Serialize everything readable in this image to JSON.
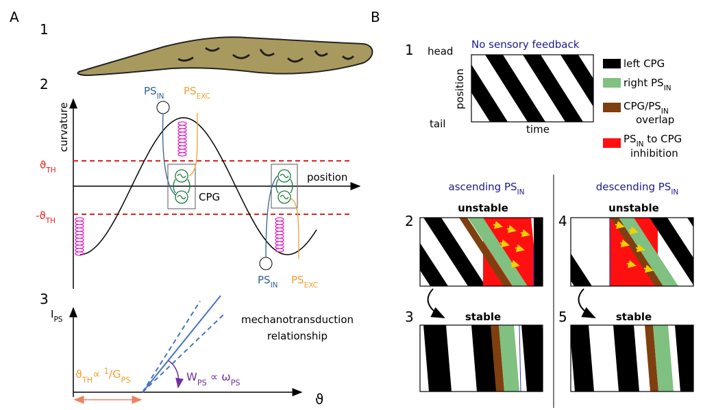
{
  "panel_a": {
    "label": "A",
    "step1": "1",
    "step2": "2",
    "step3": "3",
    "curvature_axis": "curvature",
    "position_axis": "position",
    "cpg_label": "CPG",
    "threshold_upper": [
      {
        "t": "ϑ"
      },
      {
        "sub": "TH"
      }
    ],
    "threshold_lower": [
      {
        "t": "-ϑ"
      },
      {
        "sub": "TH"
      }
    ],
    "ps_in_top": [
      {
        "t": "PS"
      },
      {
        "sub": "IN"
      }
    ],
    "ps_exc_top": [
      {
        "t": "PS"
      },
      {
        "sub": "EXC"
      }
    ],
    "ps_in_bottom": [
      {
        "t": "PS"
      },
      {
        "sub": "IN"
      }
    ],
    "ps_exc_bottom": [
      {
        "t": "PS"
      },
      {
        "sub": "EXC"
      }
    ],
    "current_axis": [
      {
        "t": "I"
      },
      {
        "sub": "PS"
      }
    ],
    "angle_axis": "ϑ",
    "relationship": [
      "mechanotransduction",
      "relationship"
    ],
    "threshold_relation": [
      {
        "t": "ϑ"
      },
      {
        "sub": "TH"
      },
      {
        "t": "∝ "
      },
      {
        "sup": "1"
      },
      {
        "t": "/G"
      },
      {
        "sub": "PS"
      }
    ],
    "gain_relation": [
      {
        "t": "W"
      },
      {
        "sub": "PS"
      },
      {
        "t": " ∝ ω"
      },
      {
        "sub": "PS"
      }
    ]
  },
  "panel_b": {
    "label": "B",
    "step1": "1",
    "head": "head",
    "tail": "tail",
    "position_axis": "position",
    "time_axis": "time",
    "no_feedback": "No sensory feedback",
    "legend": {
      "left_cpg": [
        {
          "t": "left CPG"
        }
      ],
      "right_ps_in": [
        {
          "t": "right PS"
        },
        {
          "sub": "IN"
        }
      ],
      "overlap": [
        {
          "t": "CPG/PS"
        },
        {
          "sub": "IN"
        }
      ],
      "overlap_2": "overlap",
      "inhibition": [
        {
          "t": "PS"
        },
        {
          "sub": "IN"
        },
        {
          "t": " to CPG"
        }
      ],
      "inhibition_2": "inhibition"
    },
    "ascending": [
      {
        "t": "ascending PS"
      },
      {
        "sub": "IN"
      }
    ],
    "descending": [
      {
        "t": "descending PS"
      },
      {
        "sub": "IN"
      }
    ],
    "step2": "2",
    "step3": "3",
    "step4": "4",
    "step5": "5",
    "unstable_asc": "unstable",
    "stable_asc": "stable",
    "unstable_desc": "unstable",
    "stable_desc": "stable"
  }
}
